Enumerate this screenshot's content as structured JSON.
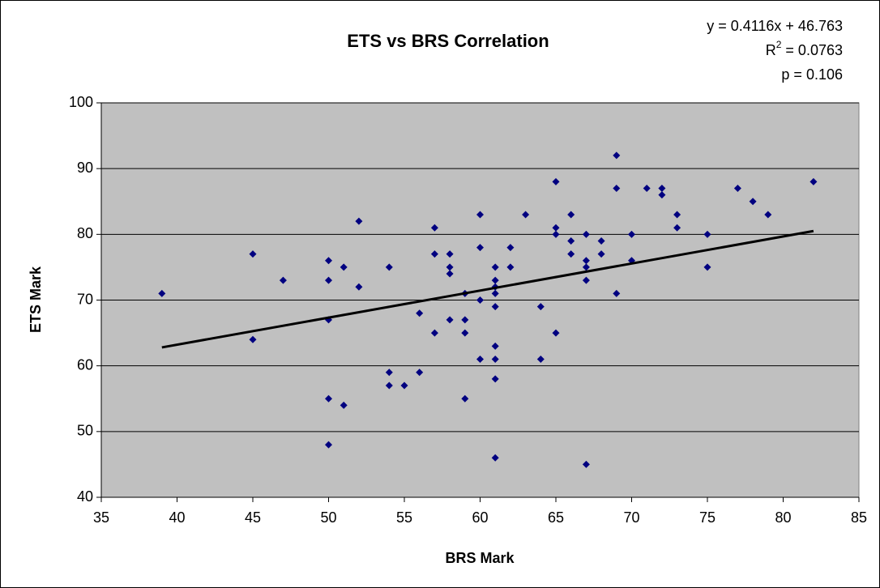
{
  "chart_data": {
    "type": "scatter",
    "title": "ETS vs BRS Correlation",
    "x_label": "BRS Mark",
    "y_label": "ETS Mark",
    "equation": "y = 0.4116x + 46.763",
    "r_squared_label": [
      "R",
      "2",
      " = 0.0763"
    ],
    "p_value": "p = 0.106",
    "xlim": [
      35,
      85
    ],
    "xticks": [
      35,
      40,
      45,
      50,
      55,
      60,
      65,
      70,
      75,
      80,
      85
    ],
    "ylim": [
      40,
      100
    ],
    "yticks": [
      40,
      50,
      60,
      70,
      80,
      90,
      100
    ],
    "grid": true,
    "plot_background": "#c0c0c0",
    "series": [
      {
        "color": "#000080",
        "x": [
          39,
          45,
          45,
          47,
          50,
          50,
          50,
          50,
          50,
          51,
          51,
          52,
          52,
          54,
          54,
          54,
          55,
          56,
          56,
          57,
          57,
          57,
          58,
          58,
          58,
          58,
          59,
          59,
          59,
          59,
          60,
          60,
          60,
          60,
          61,
          61,
          61,
          61,
          61,
          61,
          61,
          61,
          61,
          62,
          62,
          63,
          64,
          64,
          65,
          65,
          65,
          65,
          66,
          66,
          66,
          67,
          67,
          67,
          67,
          67,
          68,
          68,
          69,
          69,
          69,
          70,
          70,
          71,
          72,
          72,
          73,
          73,
          75,
          75,
          77,
          78,
          79,
          82
        ],
        "values": [
          71,
          64,
          77,
          73,
          76,
          73,
          67,
          55,
          48,
          75,
          54,
          82,
          72,
          75,
          59,
          57,
          57,
          68,
          59,
          81,
          77,
          65,
          77,
          75,
          74,
          67,
          71,
          67,
          65,
          55,
          83,
          78,
          70,
          61,
          75,
          73,
          72,
          71,
          69,
          63,
          61,
          58,
          46,
          78,
          75,
          83,
          69,
          61,
          88,
          81,
          80,
          65,
          83,
          79,
          77,
          80,
          76,
          75,
          73,
          45,
          79,
          77,
          92,
          87,
          71,
          80,
          76,
          87,
          87,
          86,
          83,
          81,
          80,
          75,
          87,
          85,
          83,
          88
        ]
      }
    ],
    "trendline": {
      "color": "#000000",
      "x": [
        39,
        82
      ],
      "y": [
        62.8,
        80.5
      ]
    }
  }
}
